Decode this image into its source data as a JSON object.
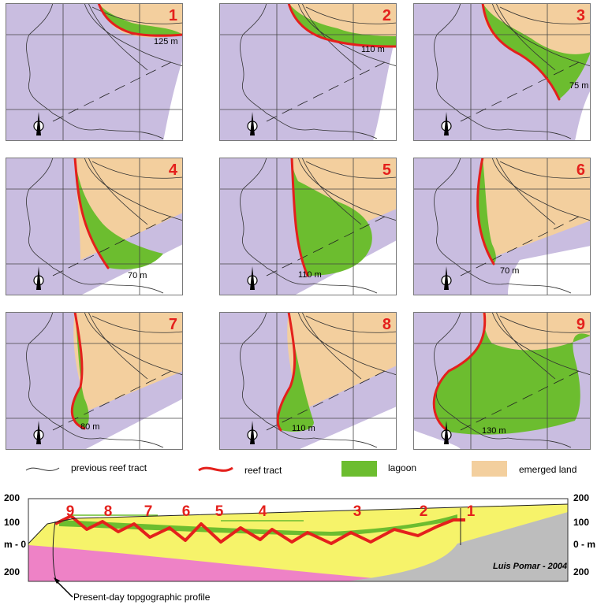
{
  "colors": {
    "sea": "#c9bde0",
    "land": "#f3cf9e",
    "lagoon": "#6cbd2f",
    "reef": "#e4201c",
    "prev": "#333333",
    "yellow": "#f6f36a",
    "pink": "#ee82c6",
    "grey": "#bdbdbd"
  },
  "panels": [
    {
      "number": "1",
      "depth": "125 m"
    },
    {
      "number": "2",
      "depth": "110 m"
    },
    {
      "number": "3",
      "depth": "75 m"
    },
    {
      "number": "4",
      "depth": "70 m"
    },
    {
      "number": "5",
      "depth": "110 m"
    },
    {
      "number": "6",
      "depth": "70 m"
    },
    {
      "number": "7",
      "depth": "80 m"
    },
    {
      "number": "8",
      "depth": "110 m"
    },
    {
      "number": "9",
      "depth": "130 m"
    }
  ],
  "legend": {
    "previous": "previous reef tract",
    "reef": "reef tract",
    "lagoon": "lagoon",
    "land": "emerged land"
  },
  "section": {
    "left_ticks": [
      "200",
      "100",
      "m - 0",
      "200"
    ],
    "right_ticks": [
      "200",
      "100",
      "0 - m",
      "200"
    ],
    "stage_numbers": [
      "9",
      "8",
      "7",
      "6",
      "5",
      "4",
      "3",
      "2",
      "1"
    ],
    "credit": "Luis Pomar - 2004",
    "profile_note": "Present-day topgographic profile"
  }
}
